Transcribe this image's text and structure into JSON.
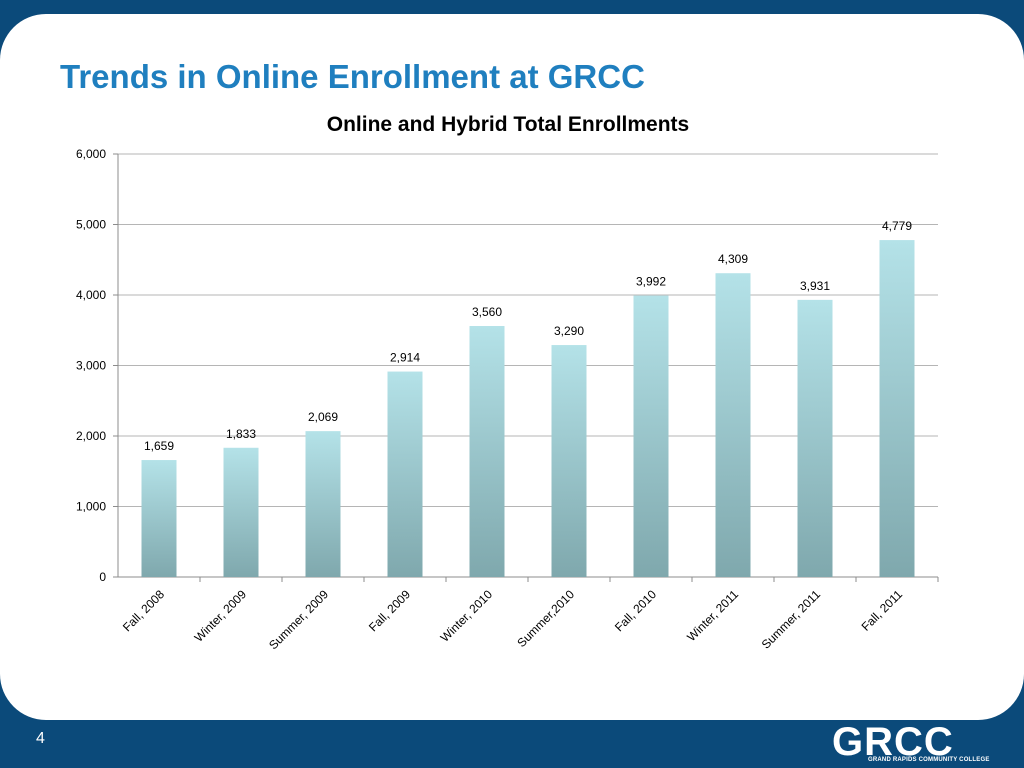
{
  "slide": {
    "title": "Trends in Online Enrollment at GRCC",
    "page_number": "4"
  },
  "logo": {
    "word": "GRCC",
    "subtitle": "GRAND RAPIDS COMMUNITY COLLEGE"
  },
  "colors": {
    "title": "#1f7fbf",
    "frame": "#0b4a7a",
    "bar_top": "#b4e2e8",
    "bar_bottom": "#7fa8ad",
    "gridline": "#b5b5b5",
    "axis": "#8c8c8c"
  },
  "chart_data": {
    "type": "bar",
    "title": "Online and Hybrid Total Enrollments",
    "categories": [
      "Fall, 2008",
      "Winter, 2009",
      "Summer, 2009",
      "Fall, 2009",
      "Winter, 2010",
      "Summer,2010",
      "Fall, 2010",
      "Winter, 2011",
      "Summer, 2011",
      "Fall, 2011"
    ],
    "values": [
      1659,
      1833,
      2069,
      2914,
      3560,
      3290,
      3992,
      4309,
      3931,
      4779
    ],
    "value_labels": [
      "1,659",
      "1,833",
      "2,069",
      "2,914",
      "3,560",
      "3,290",
      "3,992",
      "4,309",
      "3,931",
      "4,779"
    ],
    "yticks": [
      0,
      1000,
      2000,
      3000,
      4000,
      5000,
      6000
    ],
    "ytick_labels": [
      "0",
      "1,000",
      "2,000",
      "3,000",
      "4,000",
      "5,000",
      "6,000"
    ],
    "ylim": [
      0,
      6000
    ],
    "grid": true,
    "legend": "none"
  }
}
